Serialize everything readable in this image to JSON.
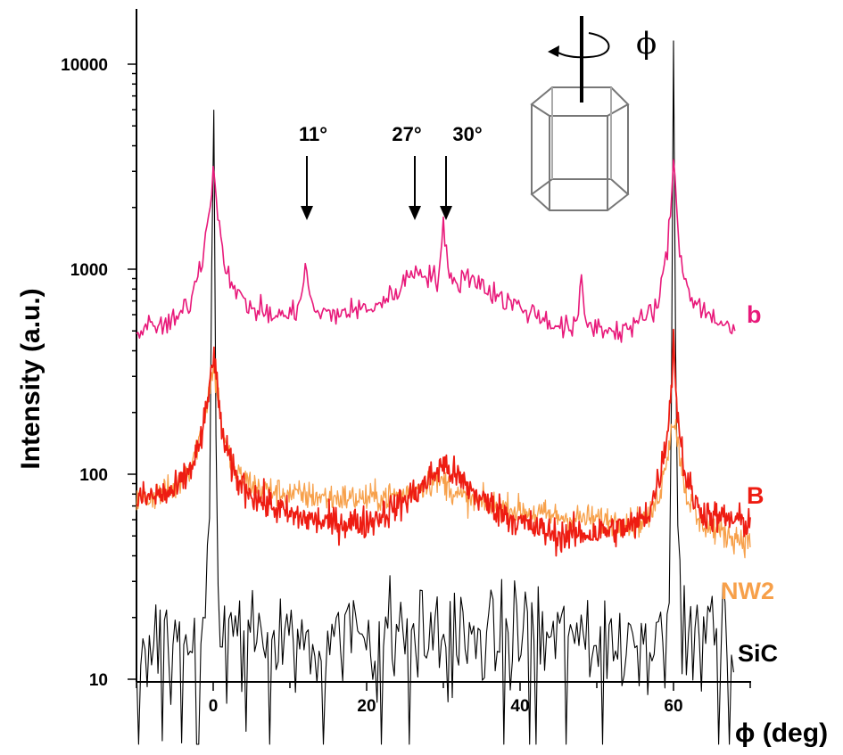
{
  "chart_data": {
    "type": "line",
    "title": "",
    "xlabel": "ϕ (deg)",
    "ylabel": "Intensity (a.u.)",
    "xlim": [
      -10,
      70
    ],
    "ylim": [
      10,
      20000
    ],
    "yscale": "log",
    "x_ticks": [
      0,
      20,
      40,
      60
    ],
    "y_ticks": [
      10,
      100,
      1000,
      10000
    ],
    "grid": false,
    "series": [
      {
        "name": "b",
        "color": "#e8197a",
        "baseline": [
          [
            -10,
            500
          ],
          [
            -5,
            550
          ],
          [
            -3,
            700
          ],
          [
            -1.5,
            1100
          ],
          [
            -0.6,
            1900
          ],
          [
            0,
            3000
          ],
          [
            0.6,
            1900
          ],
          [
            1.5,
            1100
          ],
          [
            3,
            750
          ],
          [
            5,
            650
          ],
          [
            8,
            590
          ],
          [
            10.5,
            600
          ],
          [
            11.5,
            760
          ],
          [
            12,
            1020
          ],
          [
            12.5,
            760
          ],
          [
            13.5,
            600
          ],
          [
            16,
            610
          ],
          [
            20,
            640
          ],
          [
            23,
            720
          ],
          [
            25,
            880
          ],
          [
            26.5,
            1000
          ],
          [
            28,
            950
          ],
          [
            29.3,
            880
          ],
          [
            30,
            1650
          ],
          [
            30.7,
            880
          ],
          [
            32,
            880
          ],
          [
            33.5,
            930
          ],
          [
            35,
            850
          ],
          [
            37,
            740
          ],
          [
            40,
            650
          ],
          [
            43,
            580
          ],
          [
            46,
            510
          ],
          [
            47.5,
            540
          ],
          [
            48,
            880
          ],
          [
            48.6,
            540
          ],
          [
            50,
            520
          ],
          [
            53,
            500
          ],
          [
            56,
            560
          ],
          [
            58,
            680
          ],
          [
            59.2,
            1200
          ],
          [
            60,
            3400
          ],
          [
            60.8,
            1200
          ],
          [
            62,
            780
          ],
          [
            64,
            620
          ],
          [
            66,
            560
          ],
          [
            68,
            490
          ]
        ],
        "noise": 0.06
      },
      {
        "name": "B",
        "color": "#ee1c12",
        "baseline": [
          [
            -10,
            75
          ],
          [
            -5,
            82
          ],
          [
            -3,
            105
          ],
          [
            -1.5,
            150
          ],
          [
            -0.6,
            240
          ],
          [
            0,
            400
          ],
          [
            0.6,
            240
          ],
          [
            1.5,
            135
          ],
          [
            3,
            95
          ],
          [
            6,
            75
          ],
          [
            10,
            63
          ],
          [
            15,
            58
          ],
          [
            20,
            58
          ],
          [
            24,
            70
          ],
          [
            27,
            85
          ],
          [
            30,
            112
          ],
          [
            32,
            95
          ],
          [
            35,
            75
          ],
          [
            40,
            58
          ],
          [
            45,
            50
          ],
          [
            50,
            52
          ],
          [
            55,
            56
          ],
          [
            57,
            68
          ],
          [
            58.5,
            110
          ],
          [
            59.5,
            200
          ],
          [
            60,
            450
          ],
          [
            60.5,
            200
          ],
          [
            61.5,
            100
          ],
          [
            63,
            70
          ],
          [
            65,
            62
          ],
          [
            70,
            58
          ]
        ],
        "noise": 0.08
      },
      {
        "name": "NW2",
        "color": "#f7a04a",
        "baseline": [
          [
            -10,
            74
          ],
          [
            -5,
            85
          ],
          [
            -3,
            110
          ],
          [
            -1.5,
            160
          ],
          [
            -0.6,
            250
          ],
          [
            0,
            330
          ],
          [
            0.6,
            250
          ],
          [
            1.5,
            140
          ],
          [
            3,
            100
          ],
          [
            6,
            85
          ],
          [
            10,
            80
          ],
          [
            15,
            77
          ],
          [
            20,
            76
          ],
          [
            25,
            80
          ],
          [
            28,
            92
          ],
          [
            30,
            92
          ],
          [
            32,
            78
          ],
          [
            35,
            72
          ],
          [
            40,
            66
          ],
          [
            45,
            62
          ],
          [
            50,
            60
          ],
          [
            55,
            58
          ],
          [
            57,
            62
          ],
          [
            58.5,
            90
          ],
          [
            59.5,
            150
          ],
          [
            60,
            190
          ],
          [
            60.5,
            150
          ],
          [
            61.5,
            85
          ],
          [
            63,
            60
          ],
          [
            66,
            52
          ],
          [
            70,
            47
          ]
        ],
        "noise": 0.07
      },
      {
        "name": "SiC",
        "color": "#000000",
        "baseline": [
          [
            -10,
            16
          ],
          [
            -1,
            16
          ],
          [
            -0.4,
            60
          ],
          [
            0,
            18000
          ],
          [
            0.4,
            60
          ],
          [
            1,
            16
          ],
          [
            59,
            16
          ],
          [
            59.6,
            60
          ],
          [
            60,
            18000
          ],
          [
            60.4,
            60
          ],
          [
            61,
            16
          ],
          [
            68,
            16
          ]
        ],
        "noise": 0.28
      }
    ],
    "annotations": [
      {
        "text": "11°",
        "x": 12
      },
      {
        "text": "27°",
        "x": 26.5
      },
      {
        "text": "30°",
        "x": 30
      }
    ],
    "inset": {
      "symbol": "ϕ",
      "description_shape": "hexagonal prism with rotation axis"
    }
  }
}
